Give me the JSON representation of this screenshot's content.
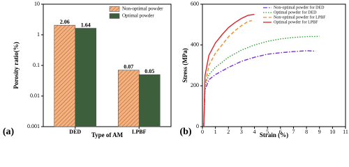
{
  "chart_data": [
    {
      "type": "bar",
      "panel": "(a)",
      "xlabel": "Type of AM",
      "ylabel": "Porosity ratio(%)",
      "categories": [
        "DED",
        "LPBF"
      ],
      "series": [
        {
          "name": "Non-optimal powder",
          "color": "#f4b183",
          "hatch": true,
          "values": [
            2.06,
            0.07
          ]
        },
        {
          "name": "Optimal powder",
          "color": "#3d5f3b",
          "hatch": false,
          "values": [
            1.64,
            0.05
          ]
        }
      ],
      "log_y": true,
      "ylim": [
        0.001,
        10
      ],
      "yticks": [
        0.001,
        0.01,
        0.1,
        1,
        10
      ],
      "legend": "top-right"
    },
    {
      "type": "line",
      "panel": "(b)",
      "xlabel": "Strain (%)",
      "ylabel": "Stress (MPa)",
      "series": [
        {
          "name": "Non-optimal powder for DED",
          "color": "#7b2fd8",
          "dash": "6,2,1.5,2",
          "x": [
            0.1,
            0.2,
            0.5,
            1,
            2,
            3,
            4,
            5,
            6,
            7,
            8,
            8.7
          ],
          "values": [
            0,
            180,
            230,
            255,
            290,
            320,
            340,
            355,
            362,
            368,
            372,
            370
          ]
        },
        {
          "name": "Optimal powder for DED",
          "color": "#2ca02c",
          "dash": "1.5,2",
          "x": [
            0.1,
            0.2,
            0.5,
            1,
            2,
            3,
            4,
            5,
            6,
            7,
            8,
            9
          ],
          "values": [
            0,
            200,
            255,
            290,
            340,
            375,
            400,
            418,
            430,
            437,
            441,
            442
          ]
        },
        {
          "name": "Non-optimal powder for LPBF",
          "color": "#f08a24",
          "dash": "5,3",
          "x": [
            0.1,
            0.2,
            0.5,
            1,
            1.5,
            2,
            2.5,
            3,
            3.5,
            3.8
          ],
          "values": [
            0,
            200,
            300,
            360,
            400,
            440,
            470,
            495,
            515,
            520
          ]
        },
        {
          "name": "Optimal powder for LPBF",
          "color": "#e0202a",
          "dash": "",
          "x": [
            0.1,
            0.2,
            0.5,
            1,
            1.5,
            2,
            2.5,
            3,
            3.5,
            4
          ],
          "values": [
            0,
            250,
            350,
            410,
            450,
            485,
            510,
            530,
            545,
            550
          ]
        }
      ],
      "xlim": [
        0,
        11
      ],
      "xticks": [
        0,
        1,
        2,
        3,
        4,
        5,
        6,
        7,
        8,
        9,
        10,
        11
      ],
      "ylim": [
        0,
        600
      ],
      "yticks": [
        0,
        200,
        400,
        600
      ],
      "legend": "top-right"
    }
  ]
}
